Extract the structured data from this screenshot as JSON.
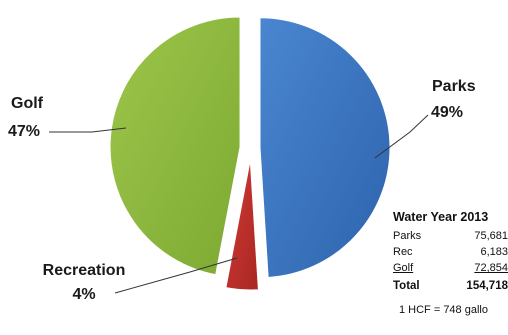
{
  "chart_data": {
    "type": "pie",
    "title": "",
    "exploded": true,
    "slices": [
      {
        "name": "Parks",
        "percent_label": "49%",
        "value": 49,
        "color": "#3f78c4"
      },
      {
        "name": "Recreation",
        "percent_label": "4%",
        "value": 4,
        "color": "#c0312e"
      },
      {
        "name": "Golf",
        "percent_label": "47%",
        "value": 47,
        "color": "#8fba3e"
      }
    ]
  },
  "table": {
    "title": "Water Year 2013",
    "rows": [
      {
        "label": "Parks",
        "value": "75,681"
      },
      {
        "label": "Rec",
        "value": "6,183"
      },
      {
        "label": "Golf",
        "value": "72,854"
      }
    ],
    "total": {
      "label": "Total",
      "value": "154,718"
    },
    "note": "1 HCF = 748 gallo"
  }
}
